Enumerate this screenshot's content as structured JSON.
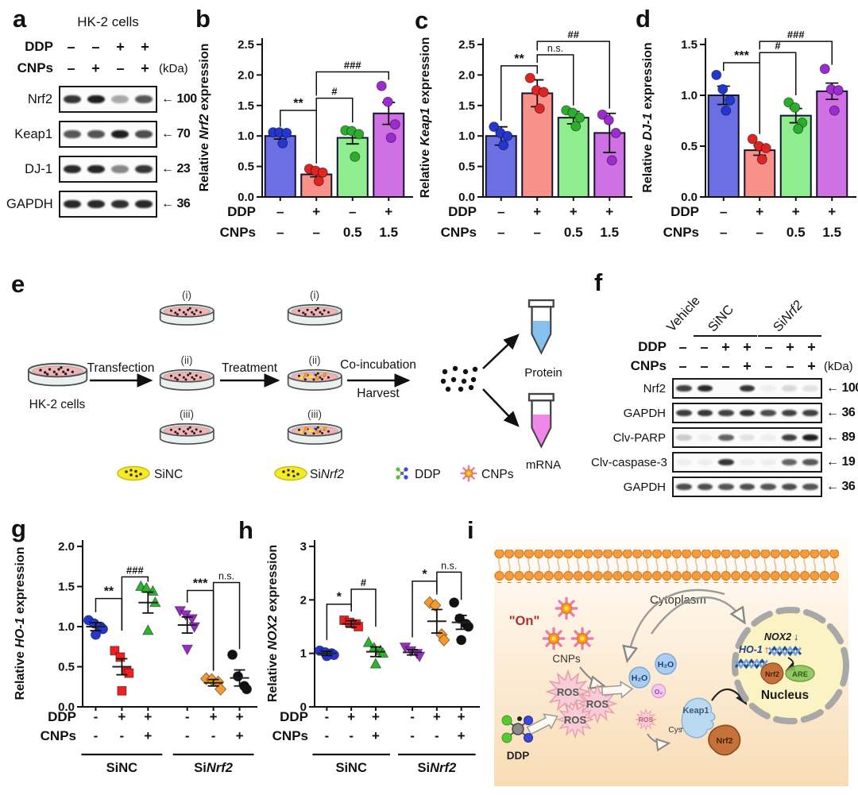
{
  "panel_labels": {
    "a": "a",
    "b": "b",
    "c": "c",
    "d": "d",
    "e": "e",
    "f": "f",
    "g": "g",
    "h": "h",
    "i": "i"
  },
  "blot_a": {
    "title": "HK-2 cells",
    "treatment_rows": [
      {
        "label": "DDP",
        "values": [
          "–",
          "–",
          "+",
          "+"
        ],
        "suffix": ""
      },
      {
        "label": "CNPs",
        "values": [
          "–",
          "+",
          "–",
          "+"
        ],
        "suffix": "(kDa)"
      }
    ],
    "bands": [
      {
        "protein": "Nrf2",
        "kda": "100",
        "intensities": [
          0.85,
          0.95,
          0.35,
          0.7
        ]
      },
      {
        "protein": "Keap1",
        "kda": "70",
        "intensities": [
          0.7,
          0.72,
          0.95,
          0.75
        ]
      },
      {
        "protein": "DJ-1",
        "kda": "23",
        "intensities": [
          0.9,
          0.92,
          0.5,
          0.85
        ]
      },
      {
        "protein": "GAPDH",
        "kda": "36",
        "intensities": [
          0.9,
          0.9,
          0.88,
          0.9
        ]
      }
    ]
  },
  "blot_f": {
    "group_labels": [
      {
        "text": "Vehicle",
        "italic": ""
      },
      {
        "text": "SiNC",
        "italic": ""
      },
      {
        "text": "Si",
        "italic": "Nrf2"
      }
    ],
    "treatment_rows": [
      {
        "label": "DDP",
        "values": [
          "–",
          "–",
          "+",
          "+",
          "–",
          "+",
          "+"
        ],
        "suffix": ""
      },
      {
        "label": "CNPs",
        "values": [
          "–",
          "–",
          "–",
          "+",
          "–",
          "–",
          "+"
        ],
        "suffix": "(kDa)"
      }
    ],
    "bands": [
      {
        "protein": "Nrf2",
        "kda": "100",
        "intensities": [
          0.8,
          0.9,
          0,
          0.85,
          0.05,
          0.15,
          0.1
        ]
      },
      {
        "protein": "GAPDH",
        "kda": "36",
        "intensities": [
          0.82,
          0.85,
          0.8,
          0.85,
          0.75,
          0.8,
          0.8
        ]
      },
      {
        "protein": "Clv-PARP",
        "kda": "89",
        "intensities": [
          0.2,
          0.05,
          0.65,
          0.1,
          0.05,
          0.8,
          0.95
        ]
      },
      {
        "protein": "Clv-caspase-3",
        "kda": "19",
        "intensities": [
          0.05,
          0.05,
          0.85,
          0.05,
          0.05,
          0.65,
          0.7
        ]
      },
      {
        "protein": "GAPDH",
        "kda": "36",
        "intensities": [
          0.75,
          0.75,
          0.72,
          0.75,
          0.72,
          0.75,
          0.72
        ]
      }
    ]
  },
  "chart_data": [
    {
      "id": "chart-b",
      "type": "bar",
      "ylabel": {
        "prefix": "Relative ",
        "gene": "Nrf2",
        "suffix": " expression"
      },
      "ylim": [
        0,
        2.5
      ],
      "yticks": [
        "0.0",
        "0.5",
        "1.0",
        "1.5",
        "2.0",
        "2.5"
      ],
      "categories": [
        "DDP– CNPs–",
        "DDP+ CNPs–",
        "DDP– CNPs0.5",
        "DDP+ CNPs1.5"
      ],
      "bar_means": [
        1.0,
        0.37,
        0.97,
        1.37
      ],
      "bar_errors": [
        0.05,
        0.04,
        0.1,
        0.18
      ],
      "points": [
        [
          1.06,
          1.06,
          1.05,
          0.88
        ],
        [
          0.46,
          0.43,
          0.4,
          0.26
        ],
        [
          1.09,
          1.08,
          1.03,
          0.66
        ],
        [
          1.82,
          1.56,
          1.19,
          0.97
        ]
      ],
      "bar_colors": [
        "#6b6fe3",
        "#f8918a",
        "#8fec8f",
        "#cf70e4"
      ],
      "point_colors": [
        "#2336cf",
        "#e02424",
        "#2bae2b",
        "#9c2bd0"
      ],
      "x_rows": [
        {
          "label": "DDP",
          "values": [
            "–",
            "+",
            "–",
            "+"
          ]
        },
        {
          "label": "CNPs",
          "values": [
            "–",
            "–",
            "0.5",
            "1.5"
          ]
        }
      ],
      "significance": [
        {
          "label": "**",
          "from": 0,
          "to": 1,
          "y": 1.42,
          "drop_left": 1.15,
          "drop_right": 0.55
        },
        {
          "label": "#",
          "from": 1,
          "to": 2,
          "y": 1.62,
          "drop_left": 0.55,
          "drop_right": 1.22
        },
        {
          "label": "###",
          "from": 1,
          "to": 3,
          "y": 2.05,
          "drop_left": 1.66,
          "drop_right": 1.92
        }
      ]
    },
    {
      "id": "chart-c",
      "type": "bar",
      "ylabel": {
        "prefix": "Relative ",
        "gene": "Keap1",
        "suffix": " expression"
      },
      "ylim": [
        0,
        2.5
      ],
      "yticks": [
        "0.0",
        "0.5",
        "1.0",
        "1.5",
        "2.0",
        "2.5"
      ],
      "categories": [
        "DDP– CNPs–",
        "DDP+ CNPs–",
        "DDP+ CNPs0.5",
        "DDP+ CNPs1.5"
      ],
      "bar_means": [
        1.0,
        1.7,
        1.3,
        1.05
      ],
      "bar_errors": [
        0.15,
        0.22,
        0.1,
        0.32
      ],
      "points": [
        [
          1.15,
          1.05,
          1.0,
          0.85
        ],
        [
          1.95,
          1.75,
          1.72,
          1.45
        ],
        [
          1.42,
          1.38,
          1.3,
          1.16
        ],
        [
          1.35,
          1.26,
          1.05,
          0.6
        ]
      ],
      "bar_colors": [
        "#6b6fe3",
        "#f8918a",
        "#8fec8f",
        "#cf70e4"
      ],
      "point_colors": [
        "#2336cf",
        "#e02424",
        "#2bae2b",
        "#9c2bd0"
      ],
      "x_rows": [
        {
          "label": "DDP",
          "values": [
            "–",
            "+",
            "+",
            "+"
          ]
        },
        {
          "label": "CNPs",
          "values": [
            "–",
            "–",
            "0.5",
            "1.5"
          ]
        }
      ],
      "significance": [
        {
          "label": "**",
          "from": 0,
          "to": 1,
          "y": 2.15,
          "drop_left": 1.25,
          "drop_right": 2.02
        },
        {
          "label": "n.s.",
          "from": 1,
          "to": 2,
          "y": 2.33,
          "drop_left": 2.2,
          "drop_right": 1.5
        },
        {
          "label": "##",
          "from": 1,
          "to": 3,
          "y": 2.55,
          "drop_left": 2.4,
          "drop_right": 1.45
        }
      ]
    },
    {
      "id": "chart-d",
      "type": "bar",
      "ylabel": {
        "prefix": "Relative ",
        "gene": "DJ-1",
        "suffix": " expression"
      },
      "ylim": [
        0,
        1.5
      ],
      "yticks": [
        "0.0",
        "0.5",
        "1.0",
        "1.5"
      ],
      "categories": [
        "DDP– CNPs–",
        "DDP+ CNPs–",
        "DDP+ CNPs0.5",
        "DDP+ CNPs1.5"
      ],
      "bar_means": [
        1.0,
        0.46,
        0.8,
        1.04
      ],
      "bar_errors": [
        0.09,
        0.05,
        0.07,
        0.08
      ],
      "points": [
        [
          1.2,
          1.06,
          0.95,
          0.85
        ],
        [
          0.57,
          0.5,
          0.48,
          0.37
        ],
        [
          0.93,
          0.88,
          0.73,
          0.67
        ],
        [
          1.26,
          1.06,
          1.05,
          0.85
        ]
      ],
      "bar_colors": [
        "#6b6fe3",
        "#f8918a",
        "#8fec8f",
        "#cf70e4"
      ],
      "point_colors": [
        "#2336cf",
        "#e02424",
        "#2bae2b",
        "#9c2bd0"
      ],
      "x_rows": [
        {
          "label": "DDP",
          "values": [
            "–",
            "+",
            "+",
            "+"
          ]
        },
        {
          "label": "CNPs",
          "values": [
            "–",
            "–",
            "0.5",
            "1.5"
          ]
        }
      ],
      "significance": [
        {
          "label": "***",
          "from": 0,
          "to": 1,
          "y": 1.32,
          "drop_left": 1.24,
          "drop_right": 0.62
        },
        {
          "label": "#",
          "from": 1,
          "to": 2,
          "y": 1.42,
          "drop_left": 0.62,
          "drop_right": 1.0
        },
        {
          "label": "###",
          "from": 1,
          "to": 3,
          "y": 1.53,
          "drop_left": 1.45,
          "drop_right": 1.3
        }
      ]
    },
    {
      "id": "chart-g",
      "type": "scatter",
      "ylabel": {
        "prefix": "Relative ",
        "gene": "HO-1",
        "suffix": " expression"
      },
      "ylim": [
        0,
        2.0
      ],
      "yticks": [
        "0.0",
        "0.5",
        "1.0",
        "1.5",
        "2.0"
      ],
      "group_means": [
        1.0,
        0.5,
        1.3,
        1.02,
        0.3,
        0.36
      ],
      "group_errors": [
        0.05,
        0.1,
        0.13,
        0.1,
        0.04,
        0.1
      ],
      "points": [
        [
          1.08,
          1.04,
          1.0,
          0.97,
          0.9
        ],
        [
          0.7,
          0.62,
          0.45,
          0.42,
          0.2
        ],
        [
          1.5,
          1.48,
          1.44,
          1.3,
          0.95
        ],
        [
          1.2,
          1.15,
          1.1,
          1.0,
          0.72
        ],
        [
          0.35,
          0.34,
          0.31,
          0.22
        ],
        [
          0.65,
          0.38,
          0.26,
          0.22
        ]
      ],
      "markers": [
        "circle",
        "square",
        "triangle-up",
        "triangle-down",
        "diamond",
        "circle"
      ],
      "point_colors": [
        "#2336cf",
        "#ee2020",
        "#2db42d",
        "#9a2dc8",
        "#f59a2d",
        "#111111"
      ],
      "x_rows": [
        {
          "label": "DDP",
          "values": [
            "-",
            "+",
            "+",
            "-",
            "+",
            "+"
          ]
        },
        {
          "label": "CNPs",
          "values": [
            "-",
            "-",
            "+",
            "-",
            "-",
            "+"
          ]
        }
      ],
      "group_spans": [
        {
          "prefix": "SiNC",
          "gene": "",
          "from": 0,
          "to": 2
        },
        {
          "prefix": "Si",
          "gene": "Nrf2",
          "from": 3,
          "to": 5
        }
      ],
      "significance": [
        {
          "label": "**",
          "from": 0,
          "to": 1,
          "y": 1.35,
          "drop_left": 1.18,
          "drop_right": 0.95
        },
        {
          "label": "###",
          "from": 1,
          "to": 2,
          "y": 1.62,
          "drop_left": 0.95,
          "drop_right": 1.56
        },
        {
          "label": "***",
          "from": 3,
          "to": 4,
          "y": 1.45,
          "drop_left": 1.3,
          "drop_right": 0.45
        },
        {
          "label": "n.s.",
          "from": 4,
          "to": 5,
          "y": 1.55,
          "drop_left": 0.45,
          "drop_right": 0.72
        }
      ]
    },
    {
      "id": "chart-h",
      "type": "scatter",
      "ylabel": {
        "prefix": "Relative ",
        "gene": "NOX2",
        "suffix": " expression"
      },
      "ylim": [
        0,
        3
      ],
      "yticks": [
        "0",
        "1",
        "2",
        "3"
      ],
      "group_means": [
        1.0,
        1.55,
        1.03,
        1.02,
        1.6,
        1.58
      ],
      "group_errors": [
        0.04,
        0.06,
        0.09,
        0.05,
        0.22,
        0.13
      ],
      "points": [
        [
          1.05,
          1.02,
          1.0,
          0.97,
          0.95
        ],
        [
          1.62,
          1.58,
          1.55,
          1.5
        ],
        [
          1.2,
          1.1,
          1.05,
          1.0,
          0.8
        ],
        [
          1.12,
          1.05,
          1.0,
          0.95
        ],
        [
          1.95,
          1.9,
          1.35,
          1.25
        ],
        [
          1.95,
          1.65,
          1.55,
          1.5,
          1.25
        ]
      ],
      "markers": [
        "circle",
        "square",
        "triangle-up",
        "triangle-down",
        "diamond",
        "circle"
      ],
      "point_colors": [
        "#2336cf",
        "#ee2020",
        "#2db42d",
        "#9a2dc8",
        "#f59a2d",
        "#111111"
      ],
      "x_rows": [
        {
          "label": "DDP",
          "values": [
            "-",
            "+",
            "+",
            "-",
            "+",
            "+"
          ]
        },
        {
          "label": "CNPs",
          "values": [
            "-",
            "-",
            "+",
            "-",
            "-",
            "+"
          ]
        }
      ],
      "group_spans": [
        {
          "prefix": "SiNC",
          "gene": "",
          "from": 0,
          "to": 2
        },
        {
          "prefix": "Si",
          "gene": "Nrf2",
          "from": 3,
          "to": 5
        }
      ],
      "significance": [
        {
          "label": "*",
          "from": 0,
          "to": 1,
          "y": 1.92,
          "drop_left": 1.25,
          "drop_right": 1.78
        },
        {
          "label": "#",
          "from": 1,
          "to": 2,
          "y": 2.2,
          "drop_left": 1.85,
          "drop_right": 1.5
        },
        {
          "label": "*",
          "from": 3,
          "to": 4,
          "y": 2.35,
          "drop_left": 1.3,
          "drop_right": 2.1
        },
        {
          "label": "n.s.",
          "from": 4,
          "to": 5,
          "y": 2.52,
          "drop_left": 2.15,
          "drop_right": 2.0
        }
      ]
    }
  ],
  "panel_e": {
    "cells_label": "HK-2 cells",
    "step1": "Transfection",
    "step2": "Treatment",
    "step3_line1": "Co-incubation",
    "step3_line2": "Harvest",
    "dish_tags": [
      "(i)",
      "(ii)",
      "(iii)"
    ],
    "tube_protein": "Protein",
    "tube_mrna": "mRNA",
    "legend_sinc": "SiNC",
    "legend_sinrf2_prefix": "Si",
    "legend_sinrf2_gene": "Nrf2",
    "legend_ddp": "DDP",
    "legend_cnps": "CNPs"
  },
  "panel_i": {
    "cytoplasm": "Cytoplasm",
    "on_label": "\"On\"",
    "cnps": "CNPs",
    "ddp": "DDP",
    "ros": "ROS",
    "h2o": "H₂O",
    "o2": "O₂",
    "cys": "Cys",
    "keap1": "Keap1",
    "nrf2": "Nrf2",
    "nox2": "NOX2",
    "nox2_arrow": "↓",
    "ho1": "HO-1",
    "ho1_arrow": "↑",
    "are": "ARE",
    "nucleus": "Nucleus"
  }
}
